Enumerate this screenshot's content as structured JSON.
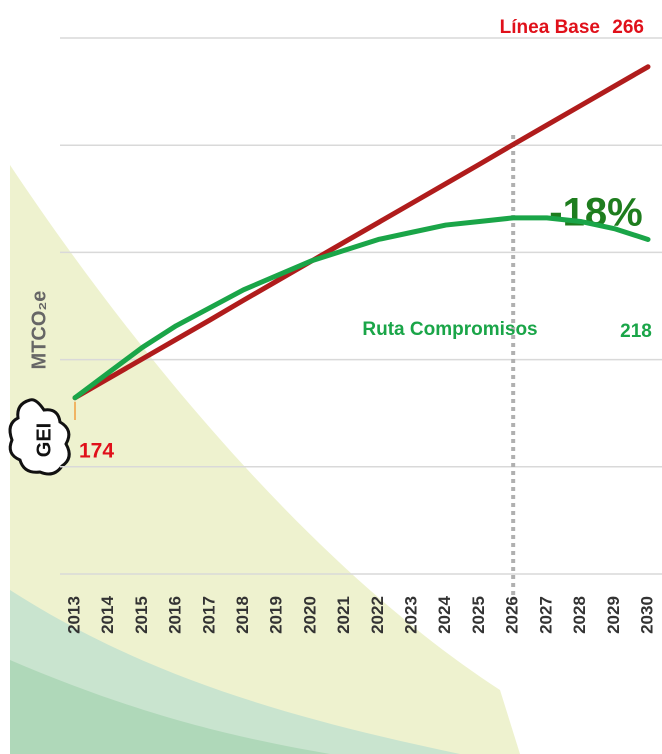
{
  "chart_data": {
    "type": "line",
    "x": [
      2013,
      2014,
      2015,
      2016,
      2017,
      2018,
      2019,
      2020,
      2021,
      2022,
      2023,
      2024,
      2025,
      2026,
      2027,
      2028,
      2029,
      2030
    ],
    "series": [
      {
        "name": "Línea Base",
        "color": "#b01c1c",
        "values": [
          174,
          179.4,
          184.8,
          190.2,
          195.6,
          201.1,
          206.5,
          211.9,
          217.3,
          222.7,
          228.1,
          233.5,
          238.9,
          244.4,
          249.8,
          255.2,
          260.6,
          266
        ]
      },
      {
        "name": "Ruta Compromisos",
        "color": "#1aa548",
        "values": [
          174,
          181,
          188,
          194,
          199,
          204,
          208,
          212,
          215,
          218,
          220,
          222,
          223,
          224,
          224,
          223,
          221,
          218
        ]
      }
    ],
    "ylim": [
      125,
      274
    ],
    "yticks": [
      125,
      154.8,
      184.6,
      214.4,
      244.2,
      274
    ],
    "grid": true,
    "y_label": "MTCO₂e",
    "icon_text": "GEI",
    "annotation": "-18%",
    "reference_x": 2026
  }
}
